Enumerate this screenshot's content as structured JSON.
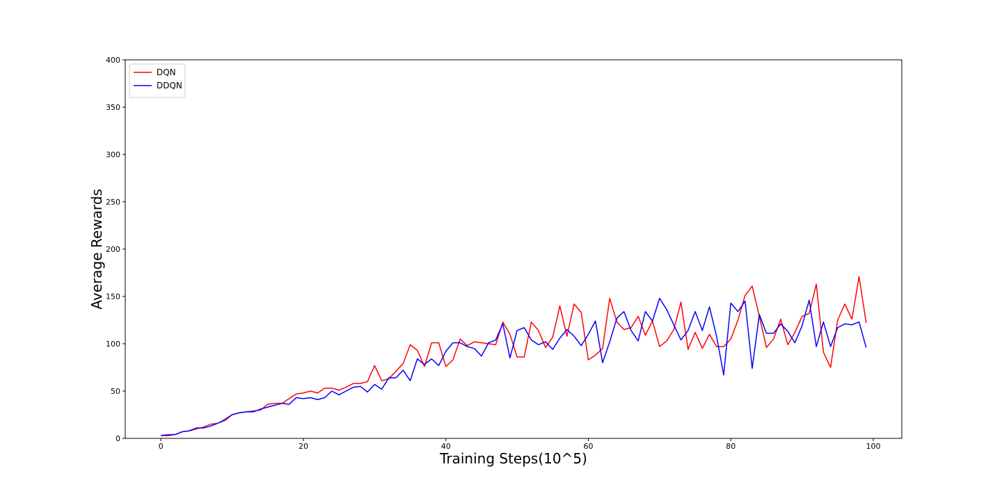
{
  "chart_data": {
    "type": "line",
    "title": "",
    "xlabel": "Training Steps(10^5)",
    "ylabel": "Average Rewards",
    "xlim": [
      -5,
      104
    ],
    "ylim": [
      0,
      400
    ],
    "x_ticks": [
      0,
      20,
      40,
      60,
      80,
      100
    ],
    "y_ticks": [
      0,
      50,
      100,
      150,
      200,
      250,
      300,
      350,
      400
    ],
    "grid": false,
    "legend_position": "top-left",
    "series": [
      {
        "name": "DQN",
        "color": "#ff0000",
        "values": [
          3,
          4,
          4,
          7,
          8,
          10,
          12,
          15,
          16,
          19,
          25,
          27,
          28,
          29,
          30,
          36,
          37,
          37,
          42,
          47,
          48,
          50,
          48,
          53,
          53,
          51,
          54,
          58,
          58,
          60,
          77,
          61,
          63,
          71,
          79,
          99,
          93,
          76,
          101,
          101,
          76,
          83,
          105,
          98,
          102,
          101,
          100,
          99,
          123,
          110,
          86,
          86,
          123,
          114,
          96,
          107,
          140,
          108,
          142,
          133,
          83,
          88,
          95,
          148,
          123,
          115,
          117,
          129,
          109,
          124,
          97,
          103,
          115,
          144,
          94,
          112,
          95,
          110,
          97,
          97,
          105,
          125,
          151,
          161,
          129,
          96,
          105,
          126,
          99,
          112,
          129,
          132,
          163,
          91,
          75,
          125,
          142,
          126,
          171,
          122
        ]
      },
      {
        "name": "DDQN",
        "color": "#0000ff",
        "values": [
          3,
          3,
          4,
          7,
          8,
          11,
          11,
          13,
          16,
          20,
          25,
          27,
          28,
          28,
          31,
          33,
          35,
          37,
          36,
          43,
          42,
          43,
          41,
          43,
          50,
          46,
          50,
          54,
          55,
          49,
          57,
          52,
          64,
          64,
          72,
          61,
          84,
          78,
          84,
          77,
          92,
          101,
          101,
          97,
          95,
          87,
          101,
          104,
          121,
          85,
          114,
          117,
          104,
          99,
          102,
          94,
          106,
          115,
          108,
          98,
          110,
          124,
          80,
          102,
          127,
          134,
          114,
          103,
          134,
          124,
          148,
          136,
          120,
          104,
          114,
          134,
          114,
          139,
          108,
          67,
          143,
          134,
          145,
          74,
          131,
          111,
          111,
          121,
          113,
          101,
          119,
          146,
          97,
          123,
          97,
          117,
          121,
          120,
          123,
          96
        ]
      }
    ]
  }
}
